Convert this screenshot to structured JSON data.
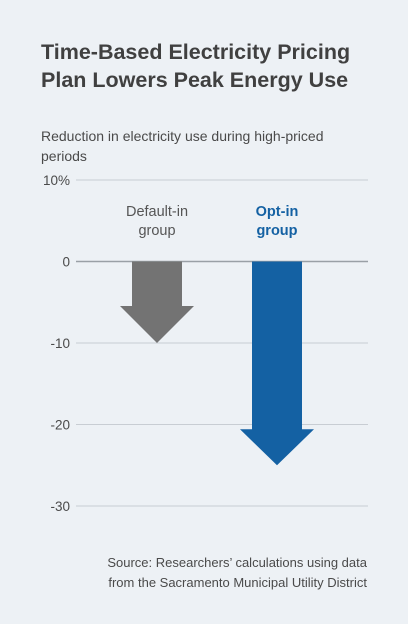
{
  "title": "Time-Based Electricity Pricing Plan Lowers Peak Energy Use",
  "subtitle": "Reduction in electricity use during high-priced periods",
  "source_line1": "Source: Researchers’ calculations using data",
  "source_line2": "from the Sacramento Municipal Utility District",
  "colors": {
    "background": "#edf1f5",
    "default_group": "#737373",
    "opt_in_group": "#1461a3",
    "gridline": "#c8cdd3"
  },
  "chart_data": {
    "type": "bar",
    "style": "downward arrows",
    "ylabel": "Reduction in electricity use during high-priced periods",
    "ylim": [
      -30,
      10
    ],
    "yticks": [
      10,
      0,
      -10,
      -20,
      -30
    ],
    "ytick_labels": [
      "10%",
      "0",
      "-10",
      "-20",
      "-30"
    ],
    "categories": [
      "Default-in group",
      "Opt-in group"
    ],
    "category_label_lines": [
      [
        "Default-in",
        "group"
      ],
      [
        "Opt-in",
        "group"
      ]
    ],
    "values": [
      -10,
      -25
    ],
    "bar_colors": [
      "#737373",
      "#1461a3"
    ],
    "label_colors": [
      "#555555",
      "#1461a3"
    ],
    "grid": true
  }
}
